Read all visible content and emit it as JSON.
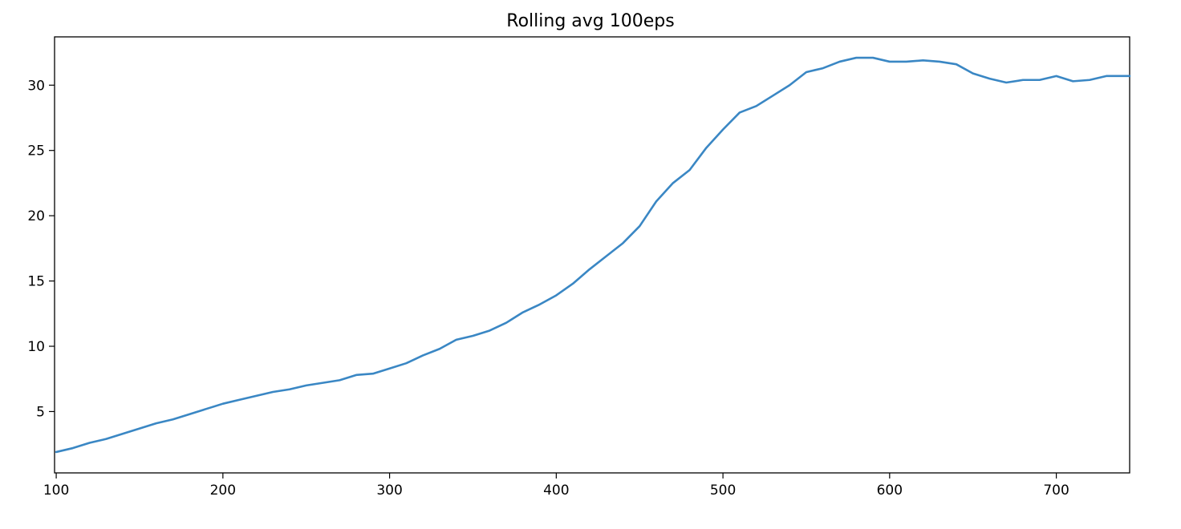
{
  "chart_data": {
    "type": "line",
    "title": "Rolling avg 100eps",
    "xlabel": "",
    "ylabel": "",
    "xlim": [
      99,
      744
    ],
    "ylim": [
      0.3,
      33.7
    ],
    "grid": false,
    "legend": "none",
    "xticks": [
      100,
      200,
      300,
      400,
      500,
      600,
      700
    ],
    "yticks": [
      5,
      10,
      15,
      20,
      25,
      30
    ],
    "x_tick_labels": [
      "100",
      "200",
      "300",
      "400",
      "500",
      "600",
      "700"
    ],
    "y_tick_labels": [
      "5",
      "10",
      "15",
      "20",
      "25",
      "30"
    ],
    "series": [
      {
        "color": "#3a87c4",
        "x": [
          100,
          110,
          120,
          130,
          140,
          150,
          160,
          170,
          180,
          190,
          200,
          210,
          220,
          230,
          240,
          250,
          260,
          270,
          280,
          290,
          300,
          310,
          320,
          330,
          340,
          350,
          360,
          370,
          380,
          390,
          400,
          410,
          420,
          430,
          440,
          450,
          460,
          470,
          480,
          490,
          500,
          510,
          520,
          530,
          540,
          550,
          560,
          570,
          580,
          590,
          600,
          610,
          620,
          630,
          640,
          650,
          660,
          670,
          680,
          690,
          700,
          710,
          720,
          730,
          744
        ],
        "y": [
          1.9,
          2.2,
          2.6,
          2.9,
          3.3,
          3.7,
          4.1,
          4.4,
          4.8,
          5.2,
          5.6,
          5.9,
          6.2,
          6.5,
          6.7,
          7.0,
          7.2,
          7.4,
          7.8,
          7.9,
          8.3,
          8.7,
          9.3,
          9.8,
          10.5,
          10.8,
          11.2,
          11.8,
          12.6,
          13.2,
          13.9,
          14.8,
          15.9,
          16.9,
          17.9,
          19.2,
          21.1,
          22.5,
          23.5,
          25.2,
          26.6,
          27.9,
          28.4,
          29.2,
          30.0,
          31.0,
          31.3,
          31.8,
          32.1,
          32.1,
          31.8,
          31.8,
          31.9,
          31.8,
          31.6,
          30.9,
          30.5,
          30.2,
          30.4,
          30.4,
          30.7,
          30.3,
          30.4,
          30.7,
          30.7
        ]
      }
    ]
  }
}
